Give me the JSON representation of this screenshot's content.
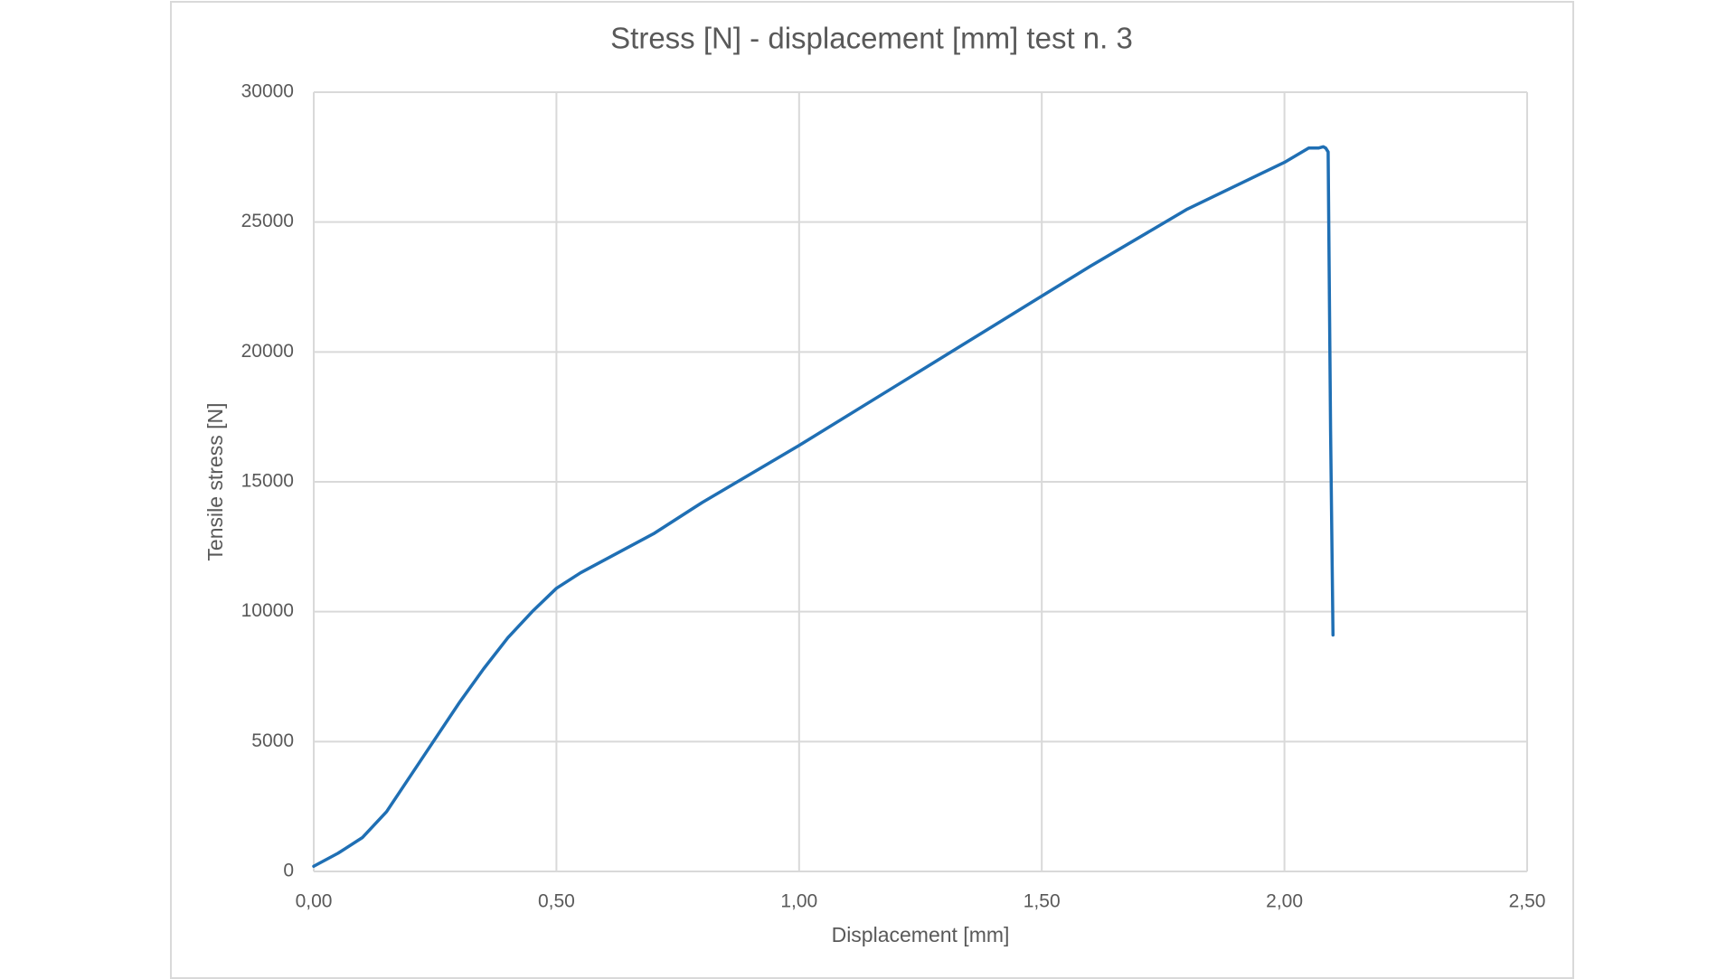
{
  "chart_data": {
    "type": "line",
    "title": "Stress [N] - displacement [mm] test n. 3",
    "xlabel": "Displacement [mm]",
    "ylabel": "Tensile stress [N]",
    "xlim": [
      0,
      2.5
    ],
    "ylim": [
      0,
      30000
    ],
    "x_ticks": [
      "0,00",
      "0,50",
      "1,00",
      "1,50",
      "2,00",
      "2,50"
    ],
    "y_ticks": [
      "0",
      "5000",
      "10000",
      "15000",
      "20000",
      "25000",
      "30000"
    ],
    "grid": true,
    "legend": "none",
    "series": [
      {
        "color": "#1f6fb4",
        "x": [
          0.0,
          0.05,
          0.1,
          0.15,
          0.2,
          0.25,
          0.3,
          0.35,
          0.4,
          0.45,
          0.5,
          0.55,
          0.6,
          0.7,
          0.8,
          0.9,
          1.0,
          1.2,
          1.4,
          1.6,
          1.8,
          2.0,
          2.05,
          2.07,
          2.08,
          2.085,
          2.09,
          2.095,
          2.1
        ],
        "y": [
          200,
          700,
          1300,
          2300,
          3700,
          5100,
          6500,
          7800,
          9000,
          10000,
          10900,
          11500,
          12000,
          13000,
          14200,
          15300,
          16400,
          18700,
          21000,
          23300,
          25500,
          27300,
          27850,
          27850,
          27900,
          27850,
          27700,
          17000,
          9100
        ]
      }
    ]
  }
}
